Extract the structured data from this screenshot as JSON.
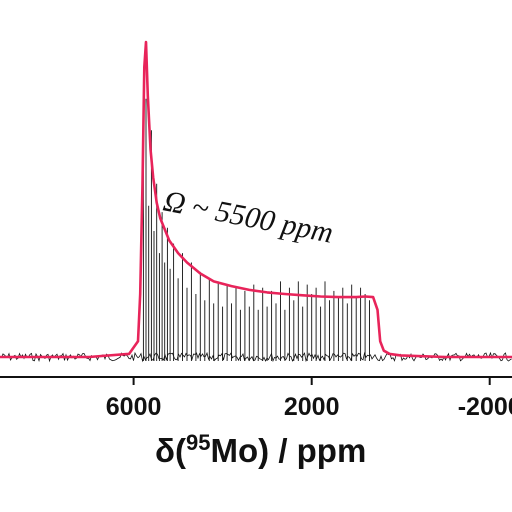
{
  "chart_data": {
    "type": "line",
    "title": "",
    "xlabel": {
      "prefix": "δ(",
      "superscript": "95",
      "nucleus": "Mo",
      "suffix": ") / ppm"
    },
    "ylabel": "",
    "x_reversed": true,
    "xlim": [
      9000,
      -2500
    ],
    "ylim": [
      0,
      1.0
    ],
    "x_ticks": [
      {
        "value": 6000,
        "label": "6000"
      },
      {
        "value": 2000,
        "label": "2000"
      },
      {
        "value": -2000,
        "label": "-2000"
      }
    ],
    "annotation": {
      "text": "Ω ~ 5500 ppm"
    },
    "colors": {
      "simulation": "#e8245a",
      "experiment": "#111111",
      "axis": "#111111"
    },
    "series": [
      {
        "role": "simulation",
        "x": [
          9000,
          7000,
          6100,
          5900,
          5850,
          5800,
          5760,
          5720,
          5680,
          5620,
          5560,
          5480,
          5400,
          5200,
          5000,
          4800,
          4500,
          4200,
          3800,
          3400,
          3000,
          2600,
          2200,
          1800,
          1400,
          1000,
          800,
          620,
          520,
          460,
          380,
          250,
          0,
          -1000,
          -2500
        ],
        "y": [
          0.0,
          0.0,
          0.01,
          0.05,
          0.2,
          0.55,
          0.92,
          1.0,
          0.83,
          0.66,
          0.57,
          0.49,
          0.44,
          0.37,
          0.33,
          0.3,
          0.265,
          0.24,
          0.225,
          0.213,
          0.205,
          0.2,
          0.196,
          0.192,
          0.19,
          0.19,
          0.192,
          0.19,
          0.15,
          0.05,
          0.02,
          0.01,
          0.005,
          0.0,
          0.0
        ]
      },
      {
        "role": "experiment",
        "x": [
          5780,
          5720,
          5660,
          5600,
          5540,
          5480,
          5420,
          5360,
          5300,
          5240,
          5180,
          5100,
          5000,
          4900,
          4800,
          4700,
          4600,
          4500,
          4400,
          4300,
          4200,
          4100,
          4000,
          3900,
          3800,
          3700,
          3600,
          3500,
          3400,
          3300,
          3200,
          3100,
          3000,
          2900,
          2800,
          2700,
          2600,
          2500,
          2400,
          2300,
          2200,
          2100,
          2000,
          1900,
          1800,
          1700,
          1600,
          1500,
          1400,
          1300,
          1200,
          1100,
          1000,
          900,
          800,
          700
        ],
        "y": [
          0.62,
          0.82,
          0.48,
          0.72,
          0.4,
          0.55,
          0.33,
          0.46,
          0.3,
          0.41,
          0.28,
          0.36,
          0.25,
          0.33,
          0.22,
          0.3,
          0.2,
          0.27,
          0.18,
          0.25,
          0.17,
          0.24,
          0.16,
          0.23,
          0.17,
          0.22,
          0.15,
          0.21,
          0.16,
          0.23,
          0.15,
          0.22,
          0.16,
          0.21,
          0.17,
          0.24,
          0.15,
          0.22,
          0.18,
          0.24,
          0.16,
          0.23,
          0.2,
          0.22,
          0.16,
          0.24,
          0.18,
          0.21,
          0.19,
          0.22,
          0.17,
          0.23,
          0.19,
          0.22,
          0.2,
          0.18
        ]
      }
    ]
  }
}
